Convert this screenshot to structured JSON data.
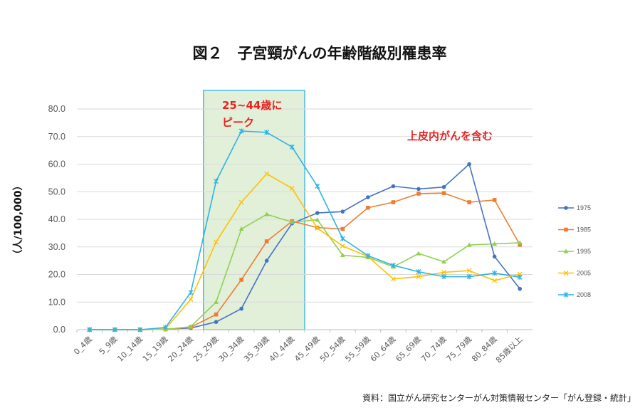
{
  "title": "図２　子宮頸がんの年齢階級別罹患率",
  "source": "資料：国立がん研究センターがん対策情報センター「がん登録・統計」",
  "chart_data": {
    "type": "line",
    "title": "図２　子宮頸がんの年齢階級別罹患率",
    "xlabel": "",
    "ylabel": "（人/100,000）",
    "ylim": [
      0,
      80
    ],
    "yticks": [
      "0.0",
      "10.0",
      "20.0",
      "30.0",
      "40.0",
      "50.0",
      "60.0",
      "70.0",
      "80.0"
    ],
    "grid": true,
    "legend_position": "right",
    "categories": [
      "0_4歳",
      "5_9歳",
      "10_14歳",
      "15_19歳",
      "20_24歳",
      "25_29歳",
      "30_34歳",
      "35_39歳",
      "40_44歳",
      "45_49歳",
      "50_54歳",
      "55_59歳",
      "60_64歳",
      "65_69歳",
      "70_74歳",
      "75_79歳",
      "80_84歳",
      "85歳以上"
    ],
    "series": [
      {
        "name": "1975",
        "color": "#4472c4",
        "marker": "circle",
        "values": [
          0.0,
          0.0,
          0.0,
          0.2,
          0.6,
          2.8,
          7.6,
          25.0,
          38.5,
          42.3,
          42.8,
          48.0,
          52.0,
          51.0,
          51.7,
          60.0,
          26.5,
          14.8
        ]
      },
      {
        "name": "1985",
        "color": "#ed7d31",
        "marker": "square",
        "values": [
          0.0,
          0.0,
          0.0,
          0.1,
          0.9,
          5.5,
          18.1,
          32.0,
          39.3,
          37.0,
          36.5,
          44.2,
          46.2,
          49.3,
          49.5,
          46.2,
          47.0,
          30.8
        ]
      },
      {
        "name": "1995",
        "color": "#8fd14f",
        "marker": "triangle",
        "values": [
          0.0,
          0.0,
          0.0,
          0.1,
          1.1,
          10.0,
          36.5,
          41.8,
          39.0,
          39.8,
          27.0,
          26.2,
          22.8,
          27.6,
          24.6,
          30.7,
          31.1,
          31.5
        ]
      },
      {
        "name": "2005",
        "color": "#ffc000",
        "marker": "x",
        "values": [
          0.0,
          0.0,
          0.0,
          0.3,
          11.0,
          31.8,
          46.2,
          56.5,
          51.2,
          36.8,
          30.3,
          26.5,
          18.4,
          19.2,
          20.8,
          21.4,
          17.8,
          20.1
        ]
      },
      {
        "name": "2008",
        "color": "#2eb4e2",
        "marker": "star",
        "values": [
          0.0,
          0.0,
          0.0,
          0.8,
          13.5,
          53.8,
          72.0,
          71.5,
          66.2,
          52.0,
          33.0,
          26.8,
          23.3,
          21.0,
          19.2,
          19.2,
          20.5,
          19.0
        ]
      }
    ],
    "annotations": [
      {
        "text_lines": [
          "25~44歳に",
          "ピーク"
        ],
        "color": "#e8231f",
        "highlight_from": "25_29歳",
        "highlight_to": "40_44歳",
        "highlight_fill": "#e2efd9",
        "highlight_border": "#2eb4e2"
      },
      {
        "text_lines": [
          "上皮内がんを含む"
        ],
        "color": "#e8231f"
      }
    ]
  }
}
